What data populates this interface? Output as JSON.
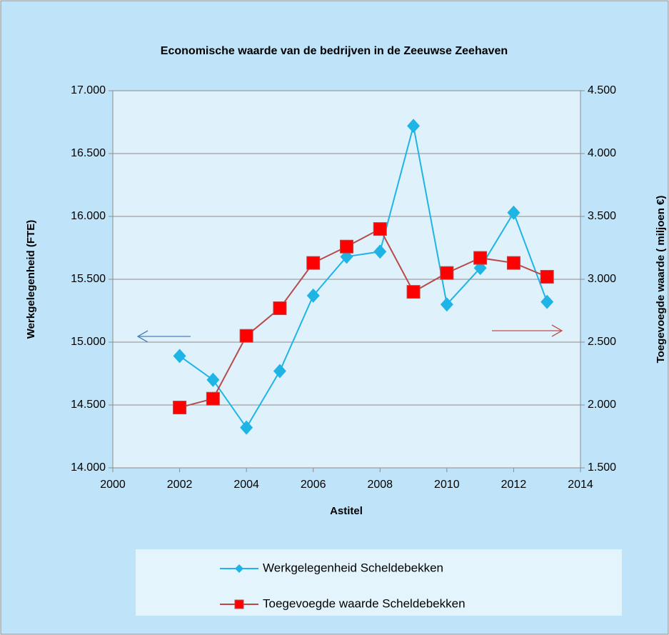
{
  "chart_data": {
    "type": "line",
    "title": "Economische waarde van de bedrijven in de Zeeuwse Zeehaven",
    "x_label": "Astitel",
    "y_label": "Werkgelegenheid  (FTE)",
    "y2_label": "Toegevoegde waarde  ( miljoen  €)",
    "x": [
      2002,
      2003,
      2004,
      2005,
      2006,
      2007,
      2008,
      2009,
      2010,
      2011,
      2012,
      2013
    ],
    "series": [
      {
        "name": "Werkgelegenheid Scheldebekken",
        "color": "#1fb4e6",
        "marker": "diamond",
        "values": [
          14890,
          14700,
          14320,
          14770,
          15370,
          15680,
          15720,
          16720,
          15300,
          15590,
          16030,
          15320
        ]
      },
      {
        "name": "Toegevoegde waarde Scheldebekken",
        "color": "#b84a4a",
        "marker": "square",
        "axis": "y2",
        "values": [
          1980,
          2050,
          2550,
          2770,
          3130,
          3260,
          3400,
          2900,
          3050,
          3170,
          3130,
          3020
        ]
      }
    ],
    "xlim": [
      2000,
      2014
    ],
    "xticks": [
      2000,
      2002,
      2004,
      2006,
      2008,
      2010,
      2012,
      2014
    ],
    "ylim": [
      14000,
      17000
    ],
    "yticks": [
      {
        "value": 14000,
        "label": "14.000"
      },
      {
        "value": 14500,
        "label": "14.500"
      },
      {
        "value": 15000,
        "label": "15.000"
      },
      {
        "value": 15500,
        "label": "15.500"
      },
      {
        "value": 16000,
        "label": "16.000"
      },
      {
        "value": 16500,
        "label": "16.500"
      },
      {
        "value": 17000,
        "label": "17.000"
      }
    ],
    "y2lim": [
      1500,
      4500
    ],
    "y2ticks": [
      {
        "value": 1500,
        "label": "1.500"
      },
      {
        "value": 2000,
        "label": "2.000"
      },
      {
        "value": 2500,
        "label": "2.500"
      },
      {
        "value": 3000,
        "label": "3.000"
      },
      {
        "value": 3500,
        "label": "3.500"
      },
      {
        "value": 4000,
        "label": "4.000"
      },
      {
        "value": 4500,
        "label": "4.500"
      }
    ],
    "grid": true,
    "legend": "bottom"
  }
}
